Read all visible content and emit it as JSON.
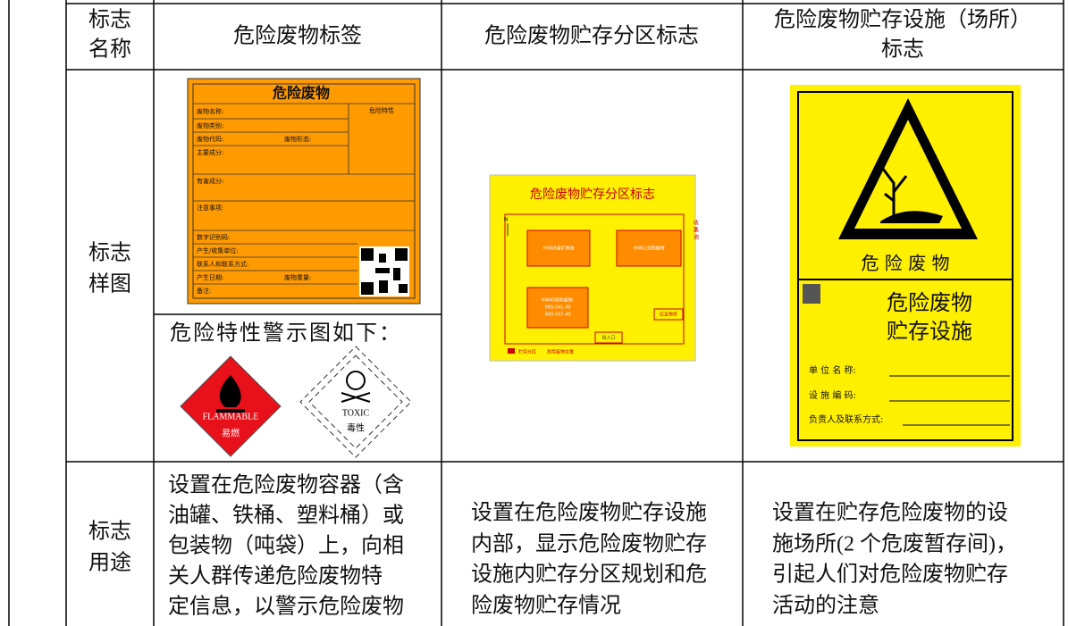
{
  "table": {
    "header": [
      [
        "标志",
        "名称"
      ],
      [
        "危险废物标签"
      ],
      [
        "危险废物贮存分区标志"
      ],
      [
        "危险废物贮存设施（场所）",
        "标志"
      ]
    ],
    "row_labels": [
      [
        "标志",
        "样图"
      ],
      [
        "标志",
        "用途"
      ]
    ],
    "usage": [
      [
        "设置在危险废物容器（含",
        "油罐、铁桶、塑料桶）或",
        "包装物（吨袋）上，向相",
        "关人群传递危险废物特",
        "定信息，以警示危险废物"
      ],
      [
        "设置在危险废物贮存设施",
        "内部，显示危险废物贮存",
        "设施内贮存分区规划和危",
        "险废物贮存情况"
      ],
      [
        "设置在贮存危险废物的设",
        "施场所(2 个危废暂存间)，",
        "引起人们对危险废物贮存",
        "活动的注意"
      ]
    ]
  },
  "label_sign": {
    "title": "危险废物",
    "hazard_char": "危险特性",
    "fields": [
      "废物名称:",
      "废物类别:",
      "废物代码:",
      "废物形态:",
      "主要成分:",
      "有害成分:",
      "注意事项:",
      "数字识别码:",
      "产生/收集单位:",
      "联系人和联系方式:",
      "产生日期:",
      "废物重量:",
      "备注:"
    ],
    "warning_caption": "危险特性警示图如下：",
    "flammable": [
      "FLAMMABLE",
      "易燃"
    ],
    "toxic": [
      "TOXIC",
      "毒性"
    ]
  },
  "zone_sign": {
    "title": "危险废物贮存分区标志",
    "north": "N",
    "pool": [
      "收",
      "集",
      "池"
    ],
    "zones": [
      [
        "HW08废矿物油"
      ],
      [
        "HW02含铜废物"
      ],
      [
        "HW49其他废物:",
        "900-041-49",
        "900-047-49"
      ]
    ],
    "emergency": "应急物资",
    "entrance": "出入口",
    "legend": [
      "贮存分区",
      "危险废物位置"
    ]
  },
  "facility_sign": {
    "banner": "危 险 废 物",
    "name": [
      "危险废物",
      "贮存设施"
    ],
    "fields": [
      "单 位 名 称:",
      "设 施 编 码:",
      "负责人及联系方式:"
    ]
  }
}
